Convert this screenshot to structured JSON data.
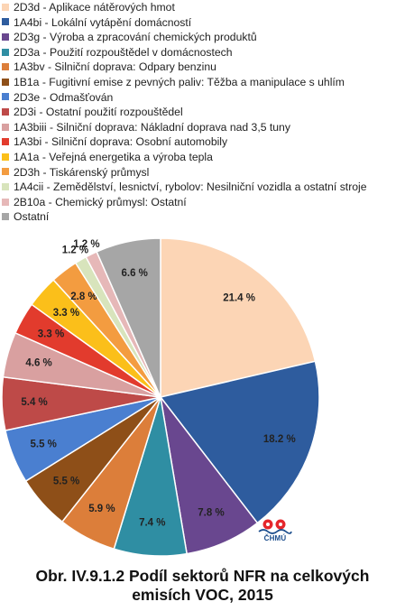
{
  "chart_data": {
    "type": "pie",
    "title": "",
    "categories": [
      "2D3d - Aplikace nátěrových hmot",
      "1A4bi - Lokální vytápění domácností",
      "2D3g - Výroba a zpracování chemických produktů",
      "2D3a - Použití rozpouštědel v domácnostech",
      "1A3bv - Silniční doprava: Odpary benzinu",
      "1B1a - Fugitivní emise z pevných paliv: Těžba a manipulace s uhlím",
      "2D3e - Odmašťován",
      "2D3i - Ostatní použití rozpouštědel",
      "1A3biii - Silniční doprava: Nákladní doprava nad 3,5 tuny",
      "1A3bi - Silniční doprava: Osobní automobily",
      "1A1a - Veřejná energetika a výroba tepla",
      "2D3h - Tiskárenský průmysl",
      "1A4cii - Zemědělství, lesnictví, rybolov: Nesilniční vozidla a ostatní stroje",
      "2B10a - Chemický průmysl: Ostatní",
      "Ostatní"
    ],
    "values": [
      21.4,
      18.2,
      7.8,
      7.4,
      5.9,
      5.5,
      5.5,
      5.4,
      4.6,
      3.3,
      3.3,
      2.8,
      1.2,
      1.2,
      6.6
    ],
    "labels": [
      "21.4 %",
      "18.2 %",
      "7.8 %",
      "7.4 %",
      "5.9 %",
      "5.5 %",
      "5.5 %",
      "5.4 %",
      "4.6 %",
      "3.3 %",
      "3.3 %",
      "2.8 %",
      "1.2 %",
      "1.2 %",
      "6.6 %"
    ],
    "colors": [
      "#fcd5b5",
      "#2e5c9e",
      "#69478f",
      "#2f8ea3",
      "#dc7e3a",
      "#8e4f18",
      "#4a7fd0",
      "#be4a48",
      "#d9a0a0",
      "#e23b2d",
      "#fbbf1a",
      "#f39c40",
      "#d8e4bc",
      "#e6b8b8",
      "#a6a6a6"
    ],
    "legend_position": "top",
    "start_angle": "12 o'clock, clockwise"
  },
  "logo": {
    "text": "ČHMÚ",
    "name": "chmu-logo"
  },
  "caption": {
    "line1": "Obr. IV.9.1.2  Podíl sektorů NFR na celkových",
    "line2": "emisích VOC, 2015"
  }
}
